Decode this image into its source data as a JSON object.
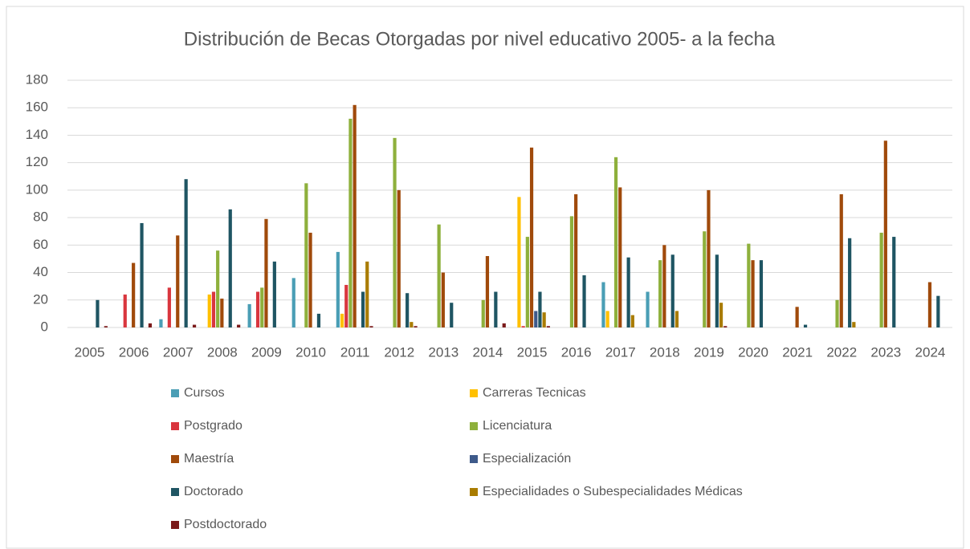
{
  "chart_data": {
    "type": "bar",
    "title": "Distribución de Becas Otorgadas por nivel educativo 2005- a la fecha",
    "categories": [
      "2005",
      "2006",
      "2007",
      "2008",
      "2009",
      "2010",
      "2011",
      "2012",
      "2013",
      "2014",
      "2015",
      "2016",
      "2017",
      "2018",
      "2019",
      "2020",
      "2021",
      "2022",
      "2023",
      "2024"
    ],
    "series": [
      {
        "name": "Cursos",
        "color": "#4a9eb5",
        "values": [
          0,
          0,
          6,
          0,
          17,
          36,
          55,
          0,
          0,
          0,
          0,
          0,
          33,
          26,
          0,
          0,
          0,
          0,
          0,
          0
        ]
      },
      {
        "name": "Carreras Tecnicas",
        "color": "#ffc000",
        "values": [
          0,
          0,
          0,
          24,
          0,
          0,
          10,
          0,
          0,
          0,
          95,
          0,
          12,
          0,
          0,
          0,
          0,
          0,
          0,
          0
        ]
      },
      {
        "name": "Postgrado",
        "color": "#d9363e",
        "values": [
          0,
          24,
          29,
          26,
          26,
          0,
          31,
          0,
          0,
          0,
          1,
          0,
          0,
          0,
          0,
          0,
          0,
          0,
          0,
          0
        ]
      },
      {
        "name": "Licenciatura",
        "color": "#8eb03c",
        "values": [
          0,
          0,
          0,
          56,
          29,
          105,
          152,
          138,
          75,
          20,
          66,
          81,
          124,
          49,
          70,
          61,
          0,
          20,
          69,
          0
        ]
      },
      {
        "name": "Maestría",
        "color": "#a04a0b",
        "values": [
          0,
          47,
          67,
          21,
          79,
          69,
          162,
          100,
          40,
          52,
          131,
          97,
          102,
          60,
          100,
          49,
          15,
          97,
          136,
          33
        ]
      },
      {
        "name": "Especialización",
        "color": "#3e5a8a",
        "values": [
          0,
          0,
          0,
          0,
          0,
          0,
          0,
          0,
          0,
          0,
          12,
          0,
          0,
          0,
          0,
          0,
          0,
          0,
          0,
          0
        ]
      },
      {
        "name": "Doctorado",
        "color": "#1f5563",
        "values": [
          20,
          76,
          108,
          86,
          48,
          10,
          26,
          25,
          18,
          26,
          26,
          38,
          51,
          53,
          53,
          49,
          2,
          65,
          66,
          23
        ]
      },
      {
        "name": "Especialidades o Subespecialidades Médicas",
        "color": "#a97c00",
        "values": [
          0,
          0,
          0,
          0,
          0,
          0,
          48,
          4,
          0,
          0,
          11,
          0,
          9,
          12,
          18,
          0,
          0,
          4,
          0,
          0
        ]
      },
      {
        "name": "Postdoctorado",
        "color": "#7b1a1a",
        "values": [
          1,
          3,
          2,
          2,
          0,
          0,
          1,
          1,
          0,
          3,
          1,
          0,
          0,
          0,
          1,
          0,
          0,
          0,
          0,
          0
        ]
      }
    ],
    "ylim": [
      0,
      180
    ],
    "yticks": [
      0,
      20,
      40,
      60,
      80,
      100,
      120,
      140,
      160,
      180
    ],
    "grid": true
  }
}
